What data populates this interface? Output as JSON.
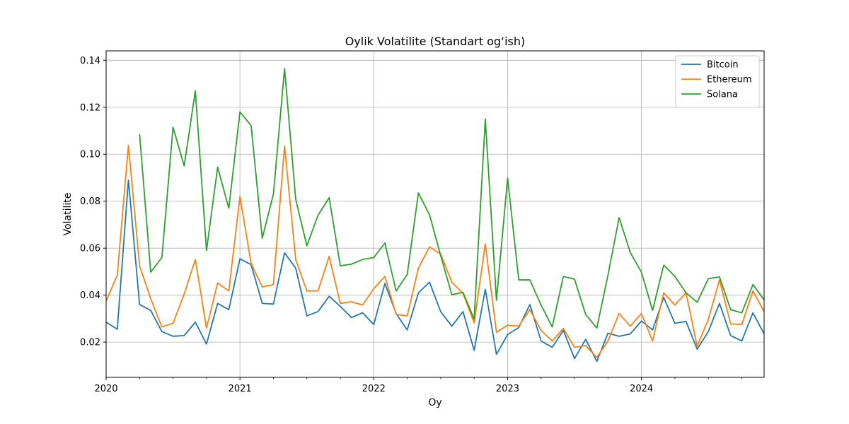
{
  "chart_data": {
    "type": "line",
    "title": "Oylik Volatilite (Standart og‘ish)",
    "xlabel": "Oy",
    "ylabel": "Volatilite",
    "x_start": "2020-01",
    "xlim": [
      "2020-01",
      "2024-12"
    ],
    "ylim": [
      0.005,
      0.144
    ],
    "x_ticks": [
      "2020",
      "2021",
      "2022",
      "2023",
      "2024"
    ],
    "y_ticks": [
      "0.02",
      "0.04",
      "0.06",
      "0.08",
      "0.10",
      "0.12",
      "0.14"
    ],
    "grid": true,
    "legend_position": "top-right",
    "series": [
      {
        "name": "Bitcoin",
        "color": "#1f77b4",
        "values": [
          0.0285,
          0.0255,
          0.089,
          0.036,
          0.0335,
          0.0245,
          0.0225,
          0.0228,
          0.0285,
          0.0192,
          0.0365,
          0.0338,
          0.0555,
          0.053,
          0.0365,
          0.0362,
          0.058,
          0.0515,
          0.0312,
          0.033,
          0.0395,
          0.0352,
          0.0305,
          0.0325,
          0.0275,
          0.045,
          0.0322,
          0.0252,
          0.041,
          0.0455,
          0.033,
          0.0268,
          0.033,
          0.0165,
          0.0425,
          0.0148,
          0.0232,
          0.0262,
          0.036,
          0.0205,
          0.0178,
          0.025,
          0.013,
          0.0212,
          0.0118,
          0.0238,
          0.0225,
          0.0235,
          0.029,
          0.0252,
          0.039,
          0.028,
          0.0288,
          0.017,
          0.0245,
          0.0365,
          0.0228,
          0.0205,
          0.0325,
          0.0235
        ]
      },
      {
        "name": "Ethereum",
        "color": "#ff7f0e",
        "values": [
          0.0375,
          0.0485,
          0.1038,
          0.0525,
          0.0385,
          0.0265,
          0.028,
          0.0405,
          0.0552,
          0.026,
          0.0452,
          0.0418,
          0.082,
          0.0535,
          0.0435,
          0.0445,
          0.1035,
          0.0552,
          0.0418,
          0.0418,
          0.0565,
          0.0365,
          0.0372,
          0.0358,
          0.0428,
          0.048,
          0.0318,
          0.0312,
          0.0515,
          0.0605,
          0.0575,
          0.0455,
          0.0408,
          0.0282,
          0.0618,
          0.0242,
          0.0272,
          0.0268,
          0.0338,
          0.025,
          0.0205,
          0.0258,
          0.0178,
          0.0185,
          0.0135,
          0.0205,
          0.0322,
          0.0268,
          0.0322,
          0.0205,
          0.041,
          0.0358,
          0.041,
          0.0182,
          0.0298,
          0.0465,
          0.0278,
          0.0275,
          0.0418,
          0.033
        ]
      },
      {
        "name": "Solana",
        "color": "#2ca02c",
        "values": [
          null,
          null,
          null,
          0.1085,
          0.0498,
          0.056,
          0.1115,
          0.095,
          0.127,
          0.059,
          0.0945,
          0.077,
          0.118,
          0.1122,
          0.0642,
          0.083,
          0.1365,
          0.0808,
          0.061,
          0.074,
          0.0815,
          0.0525,
          0.0532,
          0.0552,
          0.056,
          0.0622,
          0.0418,
          0.0488,
          0.0835,
          0.0742,
          0.0568,
          0.0402,
          0.0412,
          0.0298,
          0.115,
          0.0378,
          0.0898,
          0.0465,
          0.0465,
          0.0358,
          0.0265,
          0.048,
          0.0468,
          0.0318,
          0.026,
          0.0485,
          0.073,
          0.0582,
          0.0498,
          0.0335,
          0.0528,
          0.048,
          0.041,
          0.037,
          0.047,
          0.0478,
          0.0338,
          0.0325,
          0.0445,
          0.038
        ]
      }
    ]
  }
}
